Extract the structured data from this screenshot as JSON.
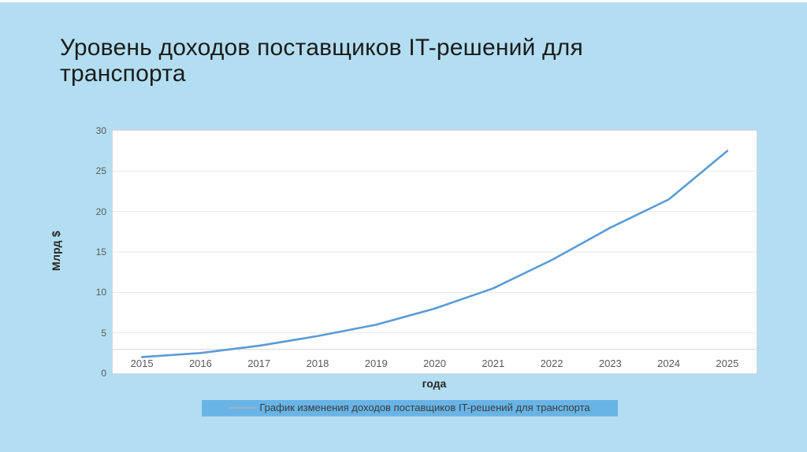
{
  "slide": {
    "title": "Уровень доходов поставщиков IT-решений для транспорта"
  },
  "chart_data": {
    "type": "line",
    "title": "",
    "x": [
      "2015",
      "2016",
      "2017",
      "2018",
      "2019",
      "2020",
      "2021",
      "2022",
      "2023",
      "2024",
      "2025"
    ],
    "series": [
      {
        "name": "График изменения доходов поставщиков IT-решений для транспорта",
        "values": [
          2,
          2.5,
          3.4,
          4.6,
          6,
          8,
          10.5,
          14,
          18,
          21.5,
          27.5
        ],
        "color": "#5b9bd5"
      }
    ],
    "xlabel": "года",
    "ylabel": "Млрд $",
    "ylim": [
      0,
      30
    ],
    "yticks": [
      0,
      5,
      10,
      15,
      20,
      25,
      30
    ],
    "grid": true,
    "legend_position": "bottom"
  },
  "colors": {
    "background": "#b3def1",
    "legend_background": "#68b4e7",
    "legend_swatch": "#9bb3c9",
    "line": "#5b9bd5",
    "gridline": "#e9e9e9"
  }
}
